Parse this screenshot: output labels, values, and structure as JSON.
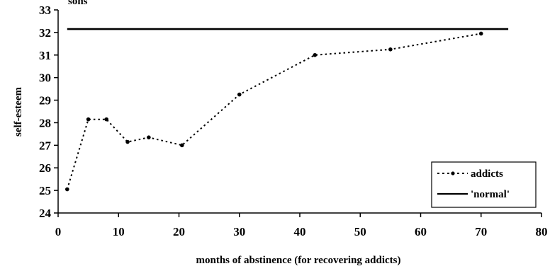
{
  "chart_data": {
    "type": "line",
    "title": "sons",
    "xlabel": "months of abstinence (for recovering addicts)",
    "ylabel": "self-esteem",
    "xlim": [
      0,
      80
    ],
    "ylim": [
      24,
      33
    ],
    "x_ticks": [
      0,
      10,
      20,
      30,
      40,
      50,
      60,
      70,
      80
    ],
    "y_ticks": [
      24,
      25,
      26,
      27,
      28,
      29,
      30,
      31,
      32,
      33
    ],
    "grid": false,
    "legend_position": "bottom-right",
    "series": [
      {
        "name": "addicts",
        "style": "dotted-with-markers",
        "x": [
          1.5,
          5,
          8,
          11.5,
          15,
          20.5,
          30,
          42.5,
          55,
          70
        ],
        "y": [
          25.05,
          28.15,
          28.15,
          27.15,
          27.35,
          27.0,
          29.25,
          31.0,
          31.25,
          31.95
        ]
      },
      {
        "name": "'normal'",
        "style": "solid",
        "x": [
          1.5,
          74.5
        ],
        "y": [
          32.15,
          32.15
        ]
      }
    ]
  }
}
